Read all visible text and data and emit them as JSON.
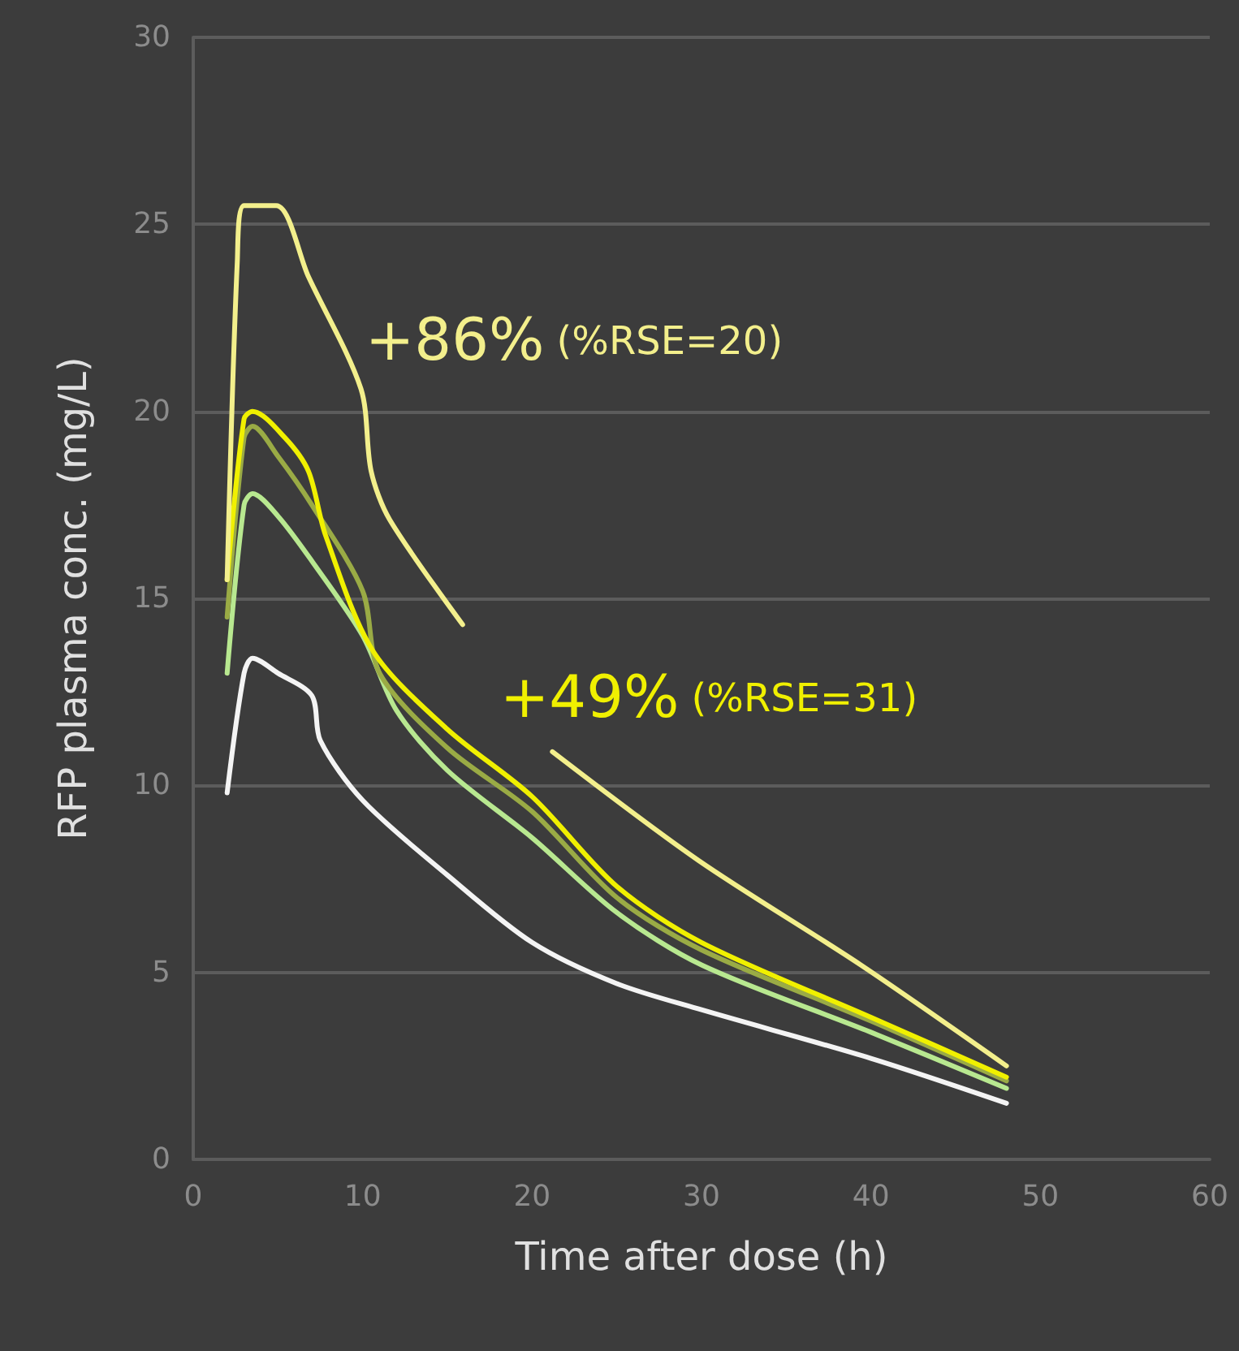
{
  "chart_data": {
    "type": "line",
    "xlabel": "Time after dose (h)",
    "ylabel": "RFP plasma conc. (mg/L)",
    "xlim": [
      0,
      60
    ],
    "xticks": [
      0,
      10,
      20,
      30,
      40,
      50,
      60
    ],
    "ylim": [
      0,
      30
    ],
    "yticks": [
      0,
      5,
      10,
      15,
      20,
      25,
      30
    ],
    "grid": "y",
    "marker": "none",
    "line_style": "solid",
    "series": [
      {
        "color": "#f4f4f4",
        "x": [
          2,
          3,
          3.5,
          5,
          7,
          7.5,
          10,
          15,
          20,
          25,
          30,
          40,
          48
        ],
        "values": [
          9.8,
          13,
          13.4,
          13,
          12.4,
          11.2,
          9.6,
          7.6,
          5.8,
          4.7,
          4,
          2.7,
          1.5
        ]
      },
      {
        "color": "#b8e890",
        "x": [
          2,
          3,
          3.5,
          5,
          7,
          10,
          12,
          15,
          20,
          25,
          30,
          40,
          48
        ],
        "values": [
          13,
          17.5,
          17.8,
          17.2,
          16,
          14,
          12,
          10.4,
          8.6,
          6.6,
          5.2,
          3.4,
          1.9
        ]
      },
      {
        "color": "#9aab45",
        "x": [
          2,
          3,
          3.5,
          5,
          7,
          10,
          11,
          15,
          20,
          25,
          30,
          40,
          48
        ],
        "values": [
          14.5,
          19.3,
          19.6,
          18.8,
          17.5,
          15.2,
          13,
          11,
          9.3,
          7,
          5.6,
          3.7,
          2.1
        ]
      },
      {
        "color": "#f0f000",
        "x": [
          2,
          3,
          3.5,
          5.4,
          6.8,
          7.8,
          10.6,
          15,
          20,
          25,
          30,
          40,
          48
        ],
        "values": [
          15.5,
          19.8,
          20,
          19.3,
          18.4,
          16.7,
          13.6,
          11.5,
          9.7,
          7.3,
          5.8,
          3.8,
          2.2
        ]
      },
      {
        "color": "#f3ef8c",
        "x": [
          2,
          2.6,
          3,
          4.9,
          6.8,
          9.9,
          10.5,
          11.6,
          15.9,
          18,
          21.2,
          29.8,
          39.4,
          48
        ],
        "values": [
          15.5,
          24,
          25.5,
          25.5,
          23.6,
          20.6,
          18.4,
          17.1,
          14.3,
          null,
          10.9,
          8,
          5.2,
          2.5
        ]
      }
    ],
    "annotations": [
      "+86% (%RSE=20)",
      "+49% (%RSE=31)"
    ]
  }
}
